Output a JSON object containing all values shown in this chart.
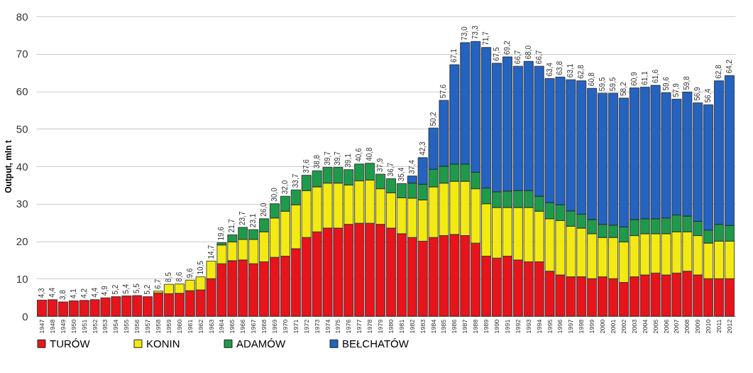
{
  "chart_data": {
    "type": "bar",
    "stacked": true,
    "ylabel": "Output, mln t",
    "categories": [
      "1947",
      "1948",
      "1949",
      "1950",
      "1951",
      "1952",
      "1953",
      "1954",
      "1955",
      "1956",
      "1957",
      "1958",
      "1959",
      "1960",
      "1961",
      "1962",
      "1963",
      "1964",
      "1965",
      "1966",
      "1967",
      "1968",
      "1969",
      "1970",
      "1971",
      "1972",
      "1973",
      "1974",
      "1975",
      "1976",
      "1977",
      "1978",
      "1979",
      "1980",
      "1981",
      "1982",
      "1983",
      "1984",
      "1985",
      "1986",
      "1987",
      "1988",
      "1989",
      "1990",
      "1991",
      "1992",
      "1993",
      "1994",
      "1995",
      "1996",
      "1997",
      "1998",
      "1999",
      "2000",
      "2001",
      "2002",
      "2003",
      "2004",
      "2005",
      "2006",
      "2007",
      "2008",
      "2009",
      "2010",
      "2011",
      "2012"
    ],
    "series": [
      {
        "name": "TURÓW",
        "color": "#e8141b",
        "values": [
          4.3,
          4.4,
          3.8,
          4.1,
          4.2,
          4.4,
          4.9,
          5.2,
          5.4,
          5.5,
          5.2,
          6.2,
          6.0,
          6.1,
          6.8,
          7.0,
          10.0,
          14.0,
          14.8,
          15.0,
          14.0,
          14.5,
          15.7,
          16.0,
          18.0,
          21.0,
          22.5,
          23.5,
          23.5,
          24.5,
          24.8,
          24.8,
          24.5,
          23.5,
          22.0,
          21.0,
          20.0,
          21.0,
          21.5,
          21.8,
          21.5,
          19.5,
          16.0,
          15.5,
          16.0,
          15.0,
          14.5,
          14.5,
          12.0,
          11.0,
          10.5,
          10.5,
          10.0,
          10.5,
          10.0,
          9.0,
          10.5,
          11.0,
          11.5,
          11.0,
          11.5,
          12.0,
          11.0,
          10.0,
          10.0,
          10.0
        ]
      },
      {
        "name": "KONIN",
        "color": "#f2ea12",
        "values": [
          null,
          null,
          null,
          null,
          null,
          null,
          null,
          null,
          null,
          null,
          null,
          0.5,
          2.5,
          2.5,
          2.8,
          3.5,
          4.7,
          5.0,
          5.0,
          5.5,
          6.5,
          8.0,
          10.5,
          12.0,
          11.7,
          12.5,
          12.0,
          12.0,
          12.0,
          10.5,
          11.3,
          11.5,
          9.5,
          9.4,
          9.6,
          10.5,
          11.0,
          13.5,
          14.0,
          14.2,
          14.5,
          14.5,
          14.0,
          13.5,
          13.0,
          14.0,
          14.5,
          13.5,
          14.0,
          14.5,
          13.5,
          13.0,
          12.0,
          10.5,
          11.0,
          10.8,
          11.0,
          11.0,
          10.5,
          11.0,
          11.0,
          10.5,
          10.5,
          9.5,
          10.0,
          10.0
        ]
      },
      {
        "name": "ADAMÓW",
        "color": "#1f9a4a",
        "values": [
          null,
          null,
          null,
          null,
          null,
          null,
          null,
          null,
          null,
          null,
          null,
          null,
          null,
          null,
          null,
          null,
          null,
          0.6,
          1.9,
          3.2,
          2.6,
          3.5,
          3.8,
          4.0,
          4.0,
          4.1,
          4.3,
          4.2,
          4.2,
          4.1,
          4.5,
          4.5,
          3.9,
          3.8,
          3.8,
          4.0,
          4.2,
          4.7,
          4.5,
          4.6,
          4.6,
          4.4,
          4.2,
          4.2,
          4.4,
          4.5,
          4.5,
          4.0,
          4.3,
          4.2,
          4.1,
          3.7,
          3.8,
          3.5,
          3.3,
          4.0,
          4.3,
          4.0,
          4.0,
          4.2,
          4.5,
          4.2,
          3.8,
          3.5,
          4.5,
          4.2
        ]
      },
      {
        "name": "BEŁCHATÓW",
        "color": "#2563c0",
        "values": [
          null,
          null,
          null,
          null,
          null,
          null,
          null,
          null,
          null,
          null,
          null,
          null,
          null,
          null,
          null,
          null,
          null,
          null,
          null,
          null,
          null,
          null,
          null,
          null,
          null,
          null,
          null,
          null,
          null,
          null,
          null,
          null,
          null,
          null,
          null,
          1.9,
          7.1,
          11.0,
          17.6,
          26.5,
          32.4,
          34.9,
          37.5,
          34.3,
          35.8,
          33.2,
          34.5,
          34.7,
          33.1,
          34.1,
          35.0,
          35.6,
          35.0,
          35.0,
          35.2,
          34.4,
          35.1,
          35.1,
          35.6,
          33.4,
          30.9,
          33.1,
          31.6,
          33.4,
          38.3,
          40.0
        ]
      }
    ],
    "totals": [
      "4,3",
      "4,4",
      "3,8",
      "4,1",
      "4,2",
      "4,4",
      "4,9",
      "5,2",
      "5,4",
      "5,5",
      "5,2",
      "6,7",
      "8,5",
      "8,6",
      "9,6",
      "10,5",
      "14,7",
      "19,6",
      "21,7",
      "23,7",
      "23,1",
      "26,0",
      "30,0",
      "32,0",
      "33,7",
      "37,6",
      "38,8",
      "39,7",
      "39,7",
      "39,1",
      "40,6",
      "40,8",
      "37,9",
      "36,7",
      "35,4",
      "37,4",
      "42,3",
      "50,2",
      "57,6",
      "67,1",
      "73,0",
      "73,3",
      "71,7",
      "67,5",
      "69,2",
      "66,7",
      "68,0",
      "66,7",
      "63,4",
      "63,8",
      "63,1",
      "62,8",
      "60,8",
      "59,5",
      "59,5",
      "58,2",
      "60,9",
      "61,1",
      "61,6",
      "59,6",
      "57,9",
      "59,8",
      "56,9",
      "56,4",
      "62,8",
      "64,2"
    ],
    "ylim": [
      0,
      80
    ],
    "yticks": [
      0,
      10,
      20,
      30,
      40,
      50,
      60,
      70,
      80
    ],
    "grid": "y",
    "legend": "bottom"
  }
}
